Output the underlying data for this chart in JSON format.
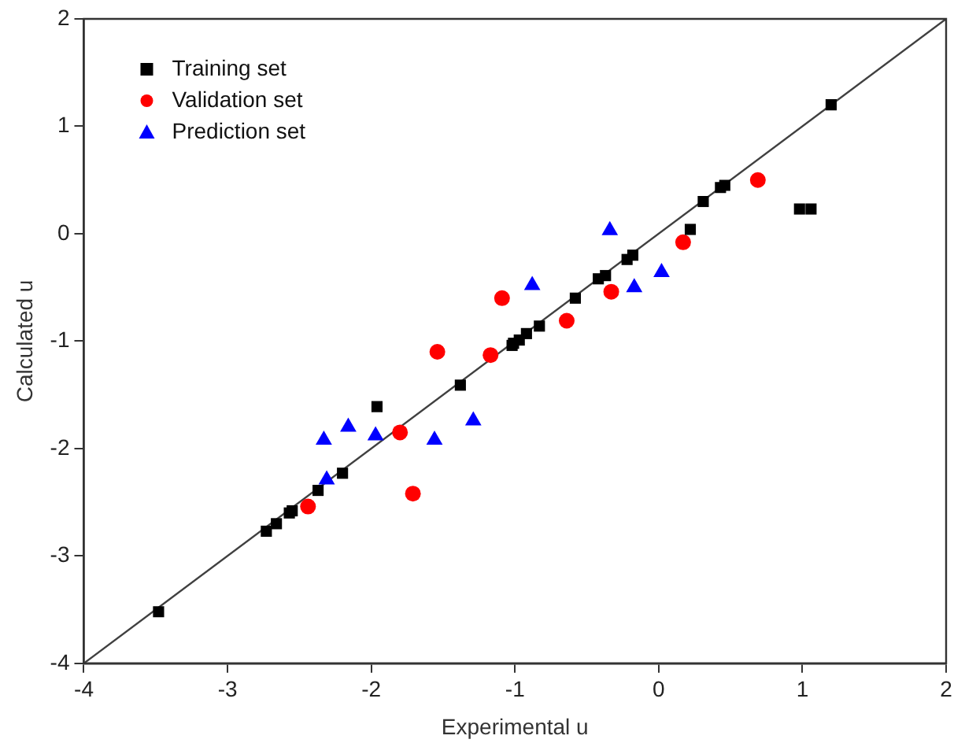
{
  "chart_data": {
    "type": "scatter",
    "xlabel": "Experimental u",
    "ylabel": "Calculated u",
    "xlim": [
      -4,
      2
    ],
    "ylim": [
      -4,
      2
    ],
    "xticks": [
      -4,
      -3,
      -2,
      -1,
      0,
      1,
      2
    ],
    "yticks": [
      -4,
      -3,
      -2,
      -1,
      0,
      1,
      2
    ],
    "grid": false,
    "legend": "top left",
    "series": [
      {
        "name": "Training set",
        "color": "#000000",
        "marker": "square",
        "x": [
          -3.48,
          -2.73,
          -2.66,
          -2.57,
          -2.55,
          -2.37,
          -2.2,
          -1.96,
          -1.38,
          -1.02,
          -1.01,
          -0.97,
          -0.92,
          -0.83,
          -0.58,
          -0.42,
          -0.37,
          -0.22,
          -0.18,
          0.22,
          0.31,
          0.43,
          0.46,
          0.98,
          1.06,
          1.2
        ],
        "values": [
          -3.52,
          -2.77,
          -2.7,
          -2.6,
          -2.58,
          -2.39,
          -2.23,
          -1.61,
          -1.41,
          -1.04,
          -1.02,
          -0.99,
          -0.93,
          -0.86,
          -0.6,
          -0.42,
          -0.39,
          -0.24,
          -0.2,
          0.04,
          0.3,
          0.43,
          0.45,
          0.23,
          0.23,
          1.2
        ]
      },
      {
        "name": "Validation set",
        "color": "#ff0000",
        "marker": "circle",
        "x": [
          -2.44,
          -1.8,
          -1.71,
          -1.54,
          -1.17,
          -1.09,
          -0.64,
          -0.33,
          0.17,
          0.69
        ],
        "values": [
          -2.54,
          -1.85,
          -2.42,
          -1.1,
          -1.13,
          -0.6,
          -0.81,
          -0.54,
          -0.08,
          0.5
        ]
      },
      {
        "name": "Prediction set",
        "color": "#0000ff",
        "marker": "triangle",
        "x": [
          -2.33,
          -2.31,
          -2.16,
          -1.97,
          -1.56,
          -1.29,
          -0.88,
          -0.34,
          -0.17,
          0.02
        ],
        "values": [
          -1.92,
          -2.29,
          -1.8,
          -1.88,
          -1.92,
          -1.74,
          -0.48,
          0.03,
          -0.5,
          -0.36
        ]
      },
      {
        "type": "line",
        "color": "#404040",
        "marker": "none",
        "line_style": "solid",
        "x": [
          -4,
          2
        ],
        "values": [
          -4,
          2
        ]
      }
    ]
  }
}
